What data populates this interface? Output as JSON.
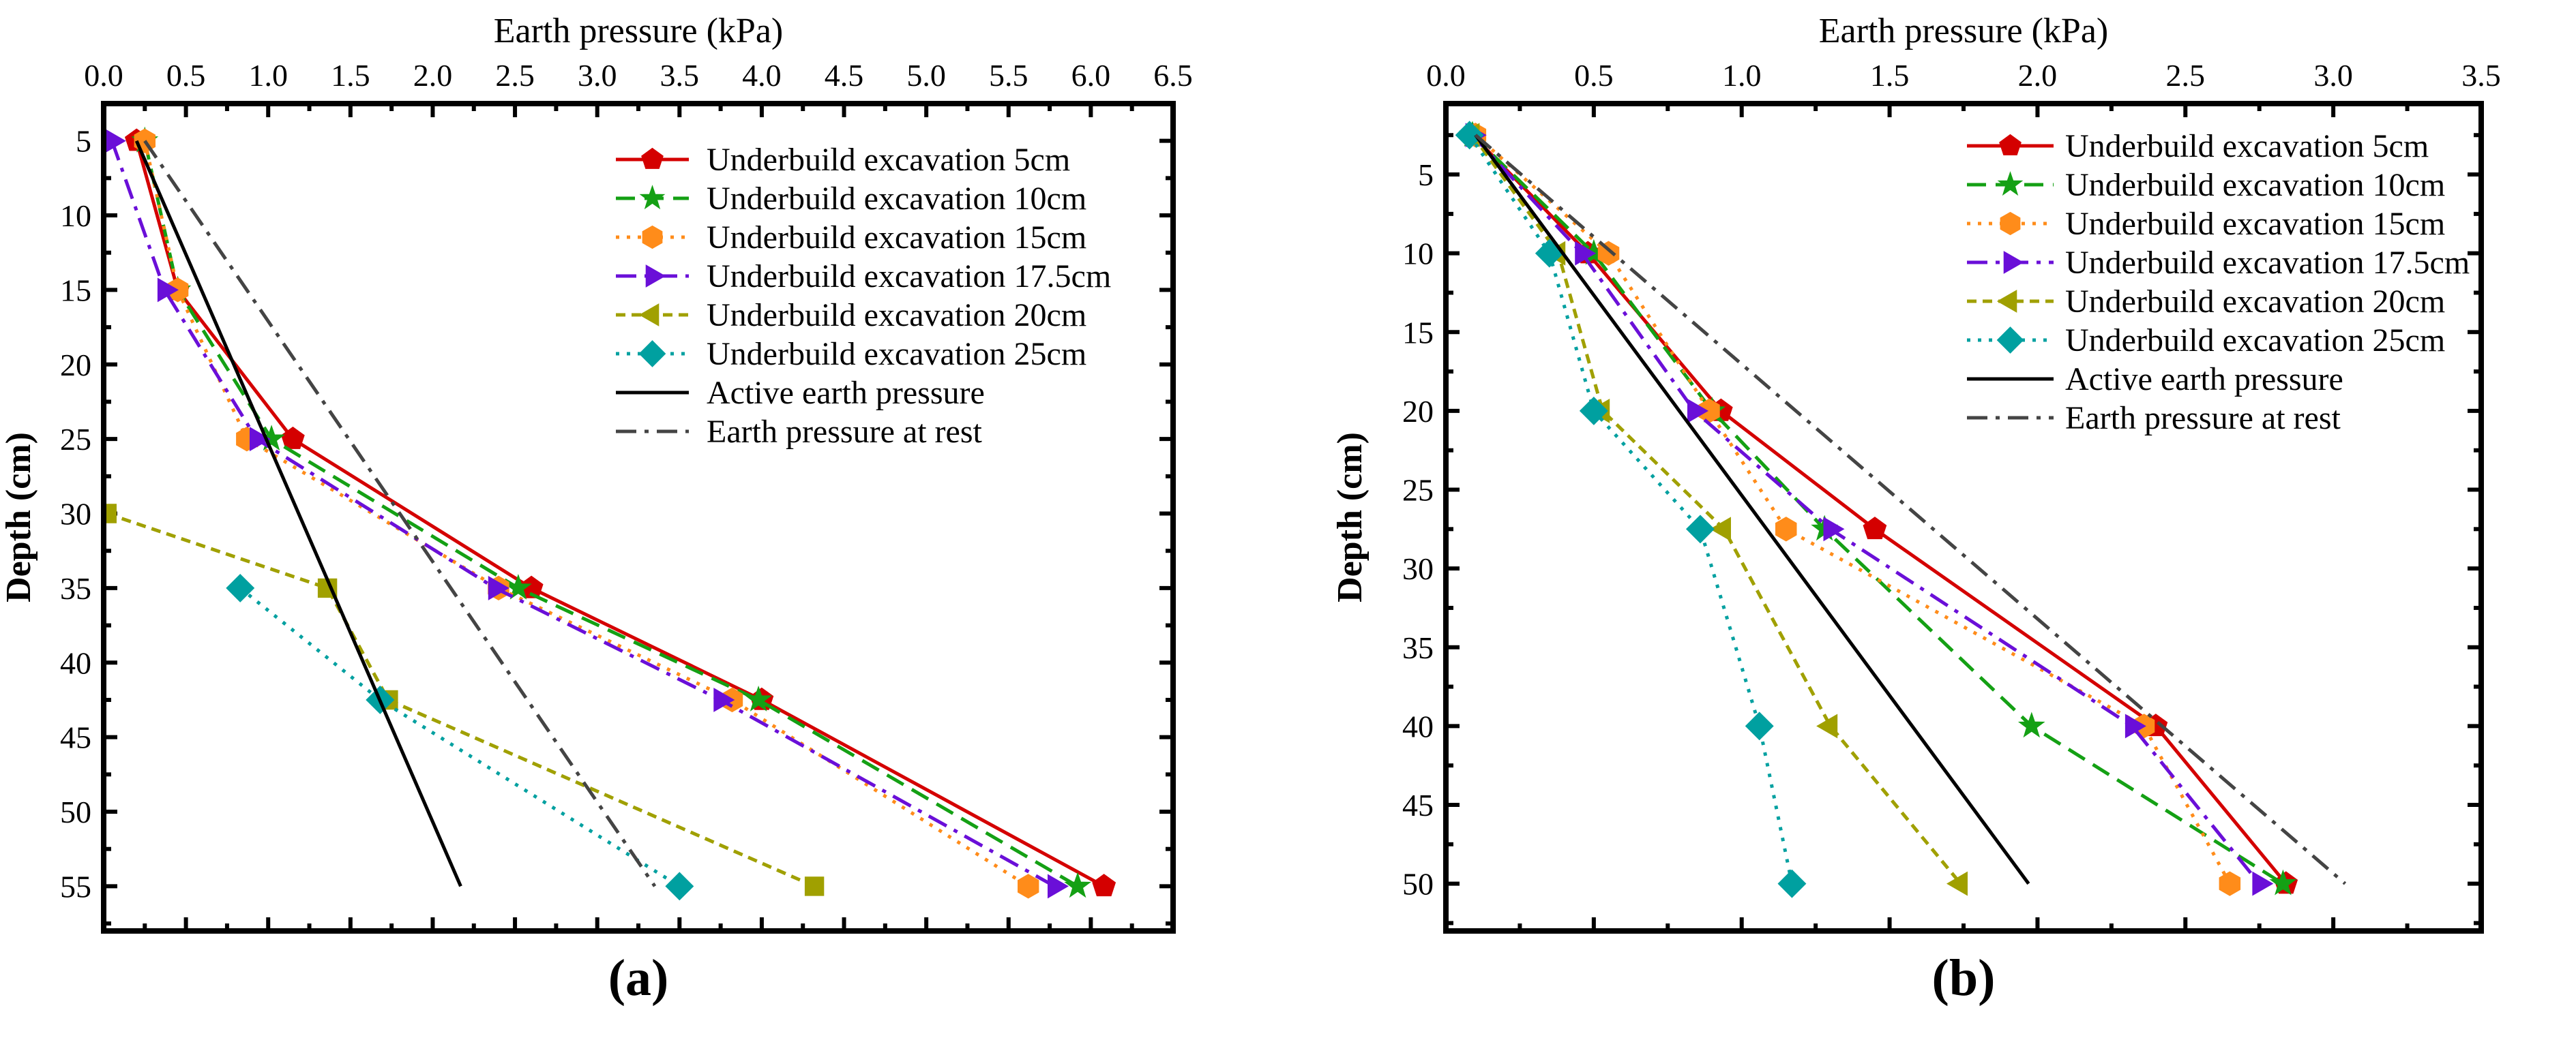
{
  "chart_data": [
    {
      "type": "line",
      "panel_label": "(a)",
      "panel_letter": "a",
      "xlabel": "Earth pressure (kPa)",
      "ylabel": "Depth (cm)",
      "xlim": [
        0,
        6.5
      ],
      "ylim": [
        2.5,
        58
      ],
      "xticks": [
        0.0,
        0.5,
        1.0,
        1.5,
        2.0,
        2.5,
        3.0,
        3.5,
        4.0,
        4.5,
        5.0,
        5.5,
        6.0,
        6.5
      ],
      "xtick_labels": [
        "0.0",
        "0.5",
        "1.0",
        "1.5",
        "2.0",
        "2.5",
        "3.0",
        "3.5",
        "4.0",
        "4.5",
        "5.0",
        "5.5",
        "6.0",
        "6.5"
      ],
      "yticks": [
        5,
        10,
        15,
        20,
        25,
        30,
        35,
        40,
        45,
        50,
        55
      ],
      "ytick_labels": [
        "5",
        "10",
        "15",
        "20",
        "25",
        "30",
        "35",
        "40",
        "45",
        "50",
        "55"
      ],
      "x_axis_position": "top",
      "y_inverted": true,
      "legend_position": "top-right",
      "series": [
        {
          "name": "Underbuild excavation 5cm",
          "color": "#d40000",
          "dash": "solid",
          "marker": "pentagon",
          "points": [
            [
              0.2,
              5
            ],
            [
              0.45,
              15
            ],
            [
              1.15,
              25
            ],
            [
              2.6,
              35
            ],
            [
              4.0,
              42.5
            ],
            [
              6.08,
              55
            ]
          ]
        },
        {
          "name": "Underbuild excavation 10cm",
          "color": "#14a014",
          "dash": "dash",
          "marker": "star",
          "points": [
            [
              0.25,
              5
            ],
            [
              0.45,
              15
            ],
            [
              1.02,
              25
            ],
            [
              2.52,
              35
            ],
            [
              3.98,
              42.5
            ],
            [
              5.92,
              55
            ]
          ]
        },
        {
          "name": "Underbuild excavation 15cm",
          "color": "#ff8c1a",
          "dash": "dot",
          "marker": "hexagon",
          "points": [
            [
              0.25,
              5
            ],
            [
              0.45,
              15
            ],
            [
              0.87,
              25
            ],
            [
              2.4,
              35
            ],
            [
              3.82,
              42.5
            ],
            [
              5.62,
              55
            ]
          ]
        },
        {
          "name": "Underbuild excavation 17.5cm",
          "color": "#6a0fd8",
          "dash": "dashdot",
          "marker": "triangle-right",
          "points": [
            [
              0.05,
              5
            ],
            [
              0.37,
              15
            ],
            [
              0.93,
              25
            ],
            [
              2.38,
              35
            ],
            [
              3.75,
              42.5
            ],
            [
              5.78,
              55
            ]
          ]
        },
        {
          "name": "Underbuild excavation 20cm",
          "color": "#a0a000",
          "dash": "shortdash",
          "marker": "square",
          "legend_marker": "triangle-left",
          "points": [
            [
              0.02,
              30
            ],
            [
              1.36,
              35
            ],
            [
              1.73,
              42.5
            ],
            [
              4.32,
              55
            ]
          ]
        },
        {
          "name": "Underbuild excavation 25cm",
          "color": "#00a0a0",
          "dash": "dot",
          "marker": "diamond",
          "points": [
            [
              0.83,
              35
            ],
            [
              1.68,
              42.5
            ],
            [
              3.5,
              55
            ]
          ]
        },
        {
          "name": "Active earth pressure",
          "color": "#000000",
          "dash": "solid",
          "marker": "none",
          "points": [
            [
              0.2,
              5
            ],
            [
              2.17,
              55
            ]
          ]
        },
        {
          "name": "Earth pressure at rest",
          "color": "#444444",
          "dash": "dashdot",
          "marker": "none",
          "points": [
            [
              0.25,
              5
            ],
            [
              3.35,
              55
            ]
          ]
        }
      ]
    },
    {
      "type": "line",
      "panel_label": "(b)",
      "panel_letter": "b",
      "xlabel": "Earth pressure (kPa)",
      "ylabel": "Depth (cm)",
      "xlim": [
        0,
        3.5
      ],
      "ylim": [
        0.5,
        53
      ],
      "xticks": [
        0.0,
        0.5,
        1.0,
        1.5,
        2.0,
        2.5,
        3.0,
        3.5
      ],
      "xtick_labels": [
        "0.0",
        "0.5",
        "1.0",
        "1.5",
        "2.0",
        "2.5",
        "3.0",
        "3.5"
      ],
      "yticks": [
        5,
        10,
        15,
        20,
        25,
        30,
        35,
        40,
        45,
        50
      ],
      "ytick_labels": [
        "5",
        "10",
        "15",
        "20",
        "25",
        "30",
        "35",
        "40",
        "45",
        "50"
      ],
      "x_axis_position": "top",
      "y_inverted": true,
      "legend_position": "top-right",
      "series": [
        {
          "name": "Underbuild excavation 5cm",
          "color": "#d40000",
          "dash": "solid",
          "marker": "pentagon",
          "points": [
            [
              0.09,
              2.5
            ],
            [
              0.48,
              10
            ],
            [
              0.93,
              20
            ],
            [
              1.45,
              27.5
            ],
            [
              2.4,
              40
            ],
            [
              2.84,
              50
            ]
          ]
        },
        {
          "name": "Underbuild excavation 10cm",
          "color": "#14a014",
          "dash": "dash",
          "marker": "star",
          "points": [
            [
              0.09,
              2.5
            ],
            [
              0.5,
              10
            ],
            [
              0.9,
              20
            ],
            [
              1.28,
              27.5
            ],
            [
              1.98,
              40
            ],
            [
              2.83,
              50
            ]
          ]
        },
        {
          "name": "Underbuild excavation 15cm",
          "color": "#ff8c1a",
          "dash": "dot",
          "marker": "hexagon",
          "points": [
            [
              0.1,
              2.5
            ],
            [
              0.55,
              10
            ],
            [
              0.89,
              20
            ],
            [
              1.15,
              27.5
            ],
            [
              2.36,
              40
            ],
            [
              2.65,
              50
            ]
          ]
        },
        {
          "name": "Underbuild excavation 17.5cm",
          "color": "#6a0fd8",
          "dash": "dashdot",
          "marker": "triangle-right",
          "points": [
            [
              0.09,
              2.5
            ],
            [
              0.46,
              10
            ],
            [
              0.84,
              20
            ],
            [
              1.3,
              27.5
            ],
            [
              2.32,
              40
            ],
            [
              2.75,
              50
            ]
          ]
        },
        {
          "name": "Underbuild excavation 20cm",
          "color": "#a0a000",
          "dash": "shortdash",
          "marker": "triangle-left",
          "points": [
            [
              0.09,
              2.5
            ],
            [
              0.38,
              10
            ],
            [
              0.53,
              20
            ],
            [
              0.94,
              27.5
            ],
            [
              1.3,
              40
            ],
            [
              1.74,
              50
            ]
          ]
        },
        {
          "name": "Underbuild excavation 25cm",
          "color": "#00a0a0",
          "dash": "dot",
          "marker": "diamond",
          "points": [
            [
              0.08,
              2.5
            ],
            [
              0.35,
              10
            ],
            [
              0.5,
              20
            ],
            [
              0.86,
              27.5
            ],
            [
              1.06,
              40
            ],
            [
              1.17,
              50
            ]
          ]
        },
        {
          "name": "Active earth pressure",
          "color": "#000000",
          "dash": "solid",
          "marker": "none",
          "points": [
            [
              0.1,
              2.5
            ],
            [
              1.97,
              50
            ]
          ]
        },
        {
          "name": "Earth pressure at rest",
          "color": "#444444",
          "dash": "dashdot",
          "marker": "none",
          "points": [
            [
              0.1,
              2.5
            ],
            [
              3.04,
              50
            ]
          ]
        }
      ]
    }
  ]
}
